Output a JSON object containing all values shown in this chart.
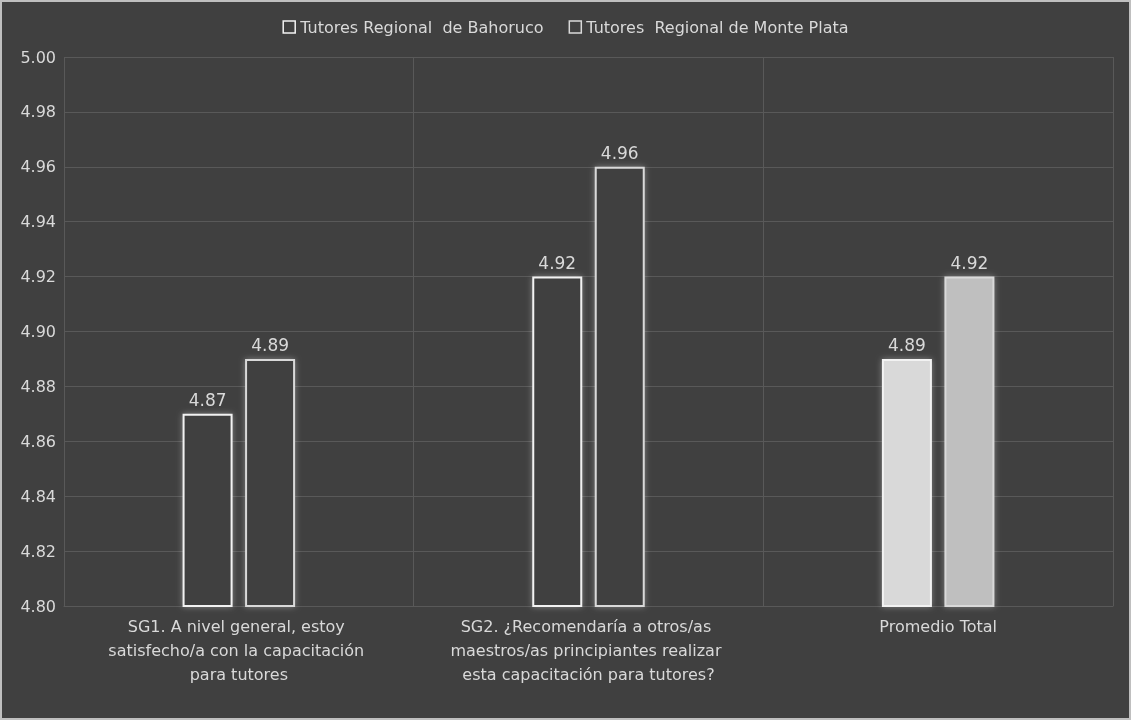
{
  "chart_data": {
    "type": "bar",
    "categories": [
      "SG1. A nivel general, estoy satisfecho/a con la capacitación para tutores",
      "SG2. ¿Recomendaría a otros/as maestros/as principiantes realizar esta capacitación para tutores?",
      "Promedio Total"
    ],
    "series": [
      {
        "name": "Tutores Regional  de Bahoruco",
        "color": "#f2f2f2",
        "colors": [
          "#404040",
          "#404040",
          "#d9d9d9"
        ],
        "values": [
          4.87,
          4.92,
          4.89
        ]
      },
      {
        "name": "Tutores  Regional de Monte Plata",
        "color": "#d9d9d9",
        "colors": [
          "#404040",
          "#404040",
          "#bfbfbf"
        ],
        "values": [
          4.89,
          4.96,
          4.92
        ]
      }
    ],
    "ylim": [
      4.8,
      5.0
    ],
    "yticks": [
      {
        "value": 4.8,
        "label": "4.80"
      },
      4.82,
      4.84,
      4.86,
      4.88,
      {
        "value": 4.9,
        "label": "4.90"
      },
      4.92,
      4.94,
      4.96,
      4.98,
      {
        "value": 5,
        "label": "5.00"
      }
    ],
    "grid": true,
    "legend": "top",
    "data_labels": true
  }
}
